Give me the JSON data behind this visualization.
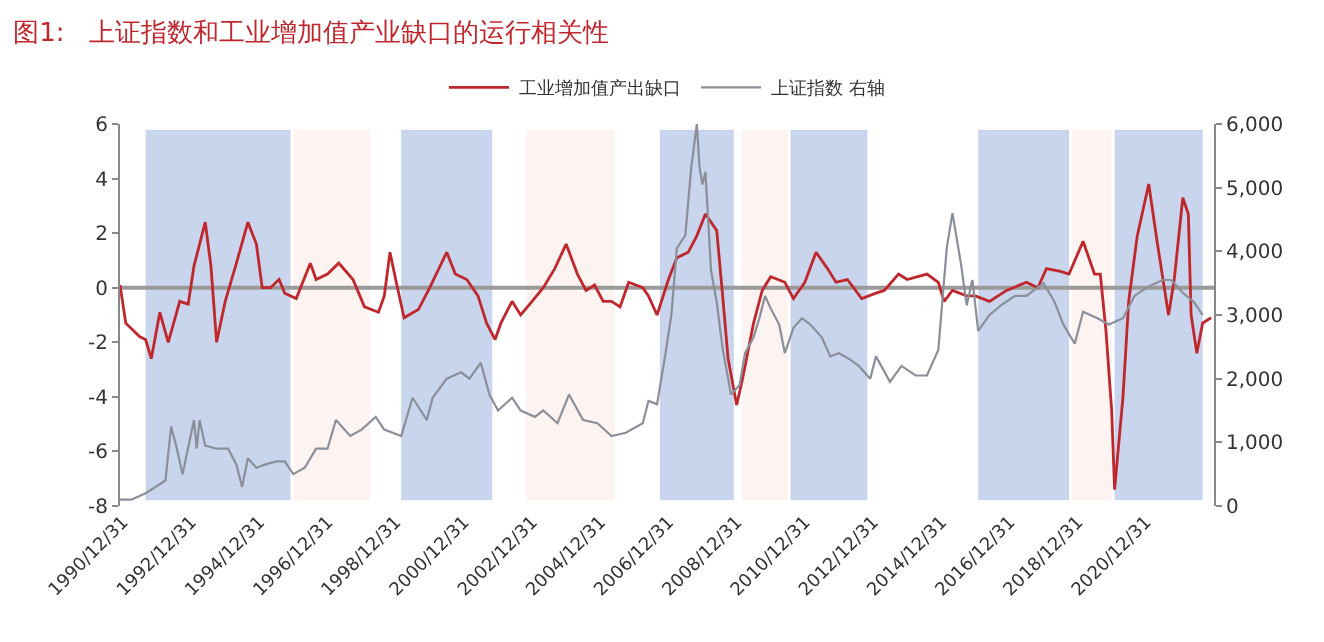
{
  "chart_data": {
    "type": "line",
    "title": "图1:   上证指数和工业增加值产业缺口的运行相关性",
    "legend": "top",
    "grid": false,
    "marker": "none",
    "line_style": "solid",
    "xlim": [
      "1990-12",
      "2023-01"
    ],
    "xticks": [
      {
        "value": "1990-12-31",
        "label": "1990/12/31"
      },
      {
        "value": "1992-12-31",
        "label": "1992/12/31"
      },
      {
        "value": "1994-12-31",
        "label": "1994/12/31"
      },
      {
        "value": "1996-12-31",
        "label": "1996/12/31"
      },
      {
        "value": "1998-12-31",
        "label": "1998/12/31"
      },
      {
        "value": "2000-12-31",
        "label": "2000/12/31"
      },
      {
        "value": "2002-12-31",
        "label": "2002/12/31"
      },
      {
        "value": "2004-12-31",
        "label": "2004/12/31"
      },
      {
        "value": "2006-12-31",
        "label": "2006/12/31"
      },
      {
        "value": "2008-12-31",
        "label": "2008/12/31"
      },
      {
        "value": "2010-12-31",
        "label": "2010/12/31"
      },
      {
        "value": "2012-12-31",
        "label": "2012/12/31"
      },
      {
        "value": "2014-12-31",
        "label": "2014/12/31"
      },
      {
        "value": "2016-12-31",
        "label": "2016/12/31"
      },
      {
        "value": "2018-12-31",
        "label": "2018/12/31"
      },
      {
        "value": "2020-12-31",
        "label": "2020/12/31"
      }
    ],
    "ref_lines": [
      {
        "axis": "y",
        "value": 0,
        "color": "#9a9a9a"
      }
    ],
    "ylim": [
      -8,
      6
    ],
    "yticks": [
      -8,
      -6,
      -4,
      -2,
      0,
      2,
      4,
      6
    ],
    "y2lim": [
      0,
      6000
    ],
    "y2ticks": [
      {
        "value": 0,
        "label": "0"
      },
      {
        "value": 1000,
        "label": "1,000"
      },
      {
        "value": 2000,
        "label": "2,000"
      },
      {
        "value": 3000,
        "label": "3,000"
      },
      {
        "value": 4000,
        "label": "4,000"
      },
      {
        "value": 5000,
        "label": "5,000"
      },
      {
        "value": 6000,
        "label": "6,000"
      }
    ],
    "bands": [
      {
        "axis": "x",
        "from": "1991-09",
        "to": "1995-12",
        "color": "#c9d5ec"
      },
      {
        "axis": "x",
        "from": "1996-01",
        "to": "1998-04",
        "color": "#fdf3f0"
      },
      {
        "axis": "x",
        "from": "1999-03",
        "to": "2001-11",
        "color": "#c9d5ec"
      },
      {
        "axis": "x",
        "from": "2002-11",
        "to": "2005-06",
        "color": "#fdf3f0"
      },
      {
        "axis": "x",
        "from": "2006-10",
        "to": "2008-12",
        "color": "#c9d5ec"
      },
      {
        "axis": "x",
        "from": "2009-03",
        "to": "2010-07",
        "color": "#fdf3f0"
      },
      {
        "axis": "x",
        "from": "2010-08",
        "to": "2012-11",
        "color": "#c9d5ec"
      },
      {
        "axis": "x",
        "from": "2016-02",
        "to": "2018-10",
        "color": "#c9d5ec"
      },
      {
        "axis": "x",
        "from": "2018-11",
        "to": "2020-01",
        "color": "#fdf3f0"
      },
      {
        "axis": "x",
        "from": "2020-02",
        "to": "2022-09",
        "color": "#c9d5ec"
      }
    ],
    "series": [
      {
        "name": "工业增加值产出缺口",
        "color": "#c0272d",
        "x": [
          "1990-12",
          "1991-02",
          "1991-07",
          "1991-09",
          "1991-11",
          "1992-02",
          "1992-05",
          "1992-09",
          "1992-12",
          "1993-02",
          "1993-06",
          "1993-08",
          "1993-10",
          "1994-01",
          "1994-05",
          "1994-09",
          "1994-12",
          "1995-02",
          "1995-05",
          "1995-08",
          "1995-10",
          "1996-02",
          "1996-07",
          "1996-09",
          "1997-01",
          "1997-05",
          "1997-10",
          "1998-02",
          "1998-07",
          "1998-09",
          "1998-11",
          "1999-01",
          "1999-04",
          "1999-09",
          "2000-01",
          "2000-07",
          "2000-10",
          "2001-02",
          "2001-06",
          "2001-09",
          "2001-12",
          "2002-02",
          "2002-06",
          "2002-09",
          "2003-01",
          "2003-05",
          "2003-09",
          "2004-01",
          "2004-05",
          "2004-08",
          "2004-11",
          "2005-02",
          "2005-05",
          "2005-08",
          "2005-11",
          "2006-04",
          "2006-06",
          "2006-09",
          "2007-01",
          "2007-04",
          "2007-08",
          "2007-11",
          "2008-02",
          "2008-06",
          "2008-08",
          "2008-10",
          "2009-01",
          "2009-03",
          "2009-07",
          "2009-10",
          "2010-01",
          "2010-06",
          "2010-09",
          "2011-01",
          "2011-05",
          "2011-09",
          "2011-12",
          "2012-04",
          "2012-09",
          "2013-02",
          "2013-05",
          "2013-10",
          "2014-01",
          "2014-08",
          "2014-12",
          "2015-02",
          "2015-05",
          "2015-10",
          "2016-01",
          "2016-06",
          "2016-12",
          "2017-07",
          "2017-11",
          "2018-02",
          "2018-07",
          "2018-10",
          "2019-03",
          "2019-07",
          "2019-09",
          "2019-11",
          "2020-01",
          "2020-02",
          "2020-05",
          "2020-07",
          "2020-10",
          "2021-02",
          "2021-05",
          "2021-09",
          "2021-11",
          "2022-02",
          "2022-04",
          "2022-05",
          "2022-07",
          "2022-09",
          "2022-12"
        ],
        "values": [
          0.1,
          -1.3,
          -1.8,
          -1.9,
          -2.6,
          -0.9,
          -2.0,
          -0.5,
          -0.6,
          0.8,
          2.4,
          0.8,
          -2.0,
          -0.5,
          0.9,
          2.4,
          1.6,
          0.0,
          0.0,
          0.3,
          -0.2,
          -0.4,
          0.9,
          0.3,
          0.5,
          0.9,
          0.3,
          -0.7,
          -0.9,
          -0.3,
          1.3,
          0.3,
          -1.1,
          -0.8,
          0.0,
          1.3,
          0.5,
          0.3,
          -0.3,
          -1.3,
          -1.9,
          -1.3,
          -0.5,
          -1.0,
          -0.5,
          0.0,
          0.7,
          1.6,
          0.5,
          -0.1,
          0.1,
          -0.5,
          -0.5,
          -0.7,
          0.2,
          0.0,
          -0.3,
          -1.0,
          0.3,
          1.1,
          1.3,
          1.9,
          2.7,
          2.1,
          -0.2,
          -2.6,
          -4.3,
          -3.4,
          -1.3,
          -0.1,
          0.4,
          0.2,
          -0.4,
          0.2,
          1.3,
          0.7,
          0.2,
          0.3,
          -0.4,
          -0.2,
          -0.1,
          0.5,
          0.3,
          0.5,
          0.2,
          -0.5,
          -0.1,
          -0.3,
          -0.3,
          -0.5,
          -0.1,
          0.2,
          0.0,
          0.7,
          0.6,
          0.5,
          1.7,
          0.5,
          0.5,
          -1.6,
          -4.5,
          -7.4,
          -4.0,
          -0.5,
          1.9,
          3.8,
          1.7,
          -1.0,
          0.3,
          3.3,
          2.7,
          -1.0,
          -2.4,
          -1.3,
          -1.1
        ]
      },
      {
        "name": "上证指数 右轴",
        "color": "#8a8f99",
        "axis": "y2",
        "x": [
          "1990-12",
          "1991-04",
          "1991-09",
          "1992-04",
          "1992-06",
          "1992-08",
          "1992-10",
          "1993-02",
          "1993-03",
          "1993-04",
          "1993-06",
          "1993-10",
          "1994-02",
          "1994-05",
          "1994-07",
          "1994-09",
          "1994-12",
          "1995-03",
          "1995-07",
          "1995-10",
          "1996-01",
          "1996-05",
          "1996-09",
          "1997-01",
          "1997-04",
          "1997-09",
          "1998-01",
          "1998-06",
          "1998-09",
          "1999-03",
          "1999-07",
          "1999-12",
          "2000-02",
          "2000-07",
          "2000-12",
          "2001-03",
          "2001-07",
          "2001-10",
          "2002-01",
          "2002-06",
          "2002-09",
          "2003-02",
          "2003-05",
          "2003-10",
          "2004-02",
          "2004-07",
          "2004-12",
          "2005-05",
          "2005-10",
          "2006-04",
          "2006-06",
          "2006-09",
          "2006-12",
          "2007-02",
          "2007-04",
          "2007-07",
          "2007-09",
          "2007-11",
          "2007-12",
          "2008-01",
          "2008-02",
          "2008-04",
          "2008-06",
          "2008-08",
          "2008-11",
          "2009-02",
          "2009-04",
          "2009-07",
          "2009-09",
          "2009-11",
          "2010-01",
          "2010-04",
          "2010-06",
          "2010-09",
          "2010-12",
          "2011-03",
          "2011-07",
          "2011-10",
          "2012-01",
          "2012-05",
          "2012-08",
          "2012-12",
          "2013-02",
          "2013-07",
          "2013-11",
          "2014-04",
          "2014-08",
          "2014-12",
          "2015-03",
          "2015-05",
          "2015-08",
          "2015-10",
          "2015-12",
          "2016-02",
          "2016-06",
          "2016-10",
          "2017-03",
          "2017-07",
          "2017-10",
          "2018-01",
          "2018-05",
          "2018-08",
          "2018-12",
          "2019-03",
          "2019-08",
          "2019-12",
          "2020-05",
          "2020-09",
          "2021-02",
          "2021-07",
          "2021-10",
          "2022-02",
          "2022-06",
          "2022-09"
        ],
        "values": [
          100,
          100,
          200,
          400,
          1250,
          900,
          500,
          1350,
          900,
          1350,
          950,
          900,
          900,
          650,
          300,
          750,
          600,
          650,
          700,
          700,
          500,
          600,
          900,
          900,
          1350,
          1100,
          1200,
          1400,
          1200,
          1100,
          1700,
          1350,
          1700,
          2000,
          2100,
          2000,
          2250,
          1750,
          1500,
          1700,
          1500,
          1400,
          1500,
          1300,
          1750,
          1350,
          1300,
          1100,
          1150,
          1300,
          1650,
          1600,
          2400,
          3000,
          4050,
          4250,
          5300,
          6000,
          5300,
          5050,
          5250,
          3700,
          3200,
          2500,
          1750,
          1900,
          2400,
          2650,
          2950,
          3300,
          3100,
          2850,
          2400,
          2800,
          2950,
          2850,
          2650,
          2350,
          2400,
          2300,
          2200,
          2000,
          2350,
          1950,
          2200,
          2050,
          2050,
          2450,
          4050,
          4600,
          3800,
          3150,
          3550,
          2750,
          3000,
          3150,
          3300,
          3300,
          3400,
          3500,
          3200,
          2850,
          2550,
          3050,
          2950,
          2850,
          2950,
          3300,
          3450,
          3550,
          3550,
          3350,
          3200,
          3000
        ]
      }
    ]
  }
}
